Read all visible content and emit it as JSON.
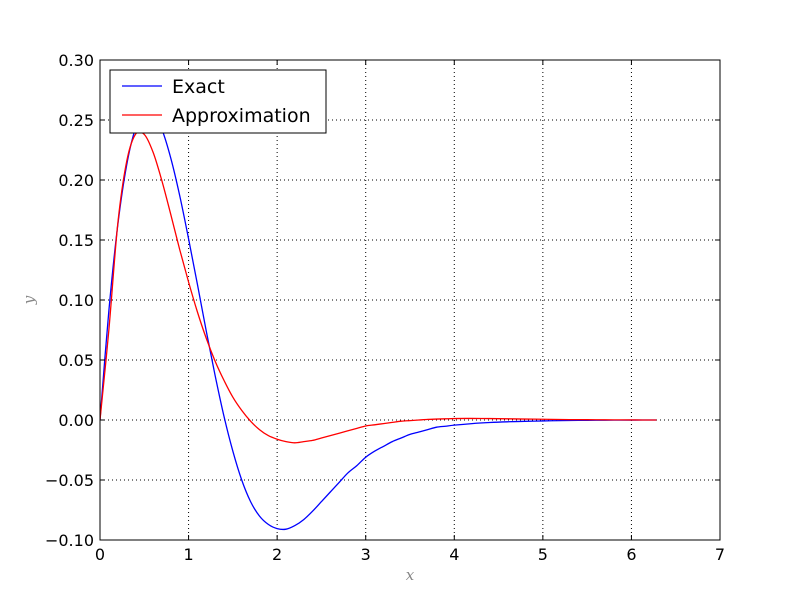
{
  "chart_data": {
    "type": "line",
    "xlabel": "x",
    "ylabel": "y",
    "xlim": [
      0,
      7
    ],
    "ylim": [
      -0.1,
      0.3
    ],
    "xticks": [
      0,
      1,
      2,
      3,
      4,
      5,
      6,
      7
    ],
    "yticks": [
      -0.1,
      -0.05,
      0.0,
      0.05,
      0.1,
      0.15,
      0.2,
      0.25,
      0.3
    ],
    "xtick_labels": [
      "0",
      "1",
      "2",
      "3",
      "4",
      "5",
      "6",
      "7"
    ],
    "ytick_labels": [
      "−0.10",
      "−0.05",
      "0.00",
      "0.05",
      "0.10",
      "0.15",
      "0.20",
      "0.25",
      "0.30"
    ],
    "grid": true,
    "legend_position": "top-left",
    "series": [
      {
        "name": "Exact",
        "color": "#0000ff",
        "x": [
          0,
          0.1,
          0.2,
          0.3,
          0.4,
          0.5,
          0.6,
          0.7,
          0.8,
          0.9,
          1.0,
          1.1,
          1.2,
          1.3,
          1.4,
          1.5,
          1.6,
          1.7,
          1.8,
          1.9,
          2.0,
          2.1,
          2.2,
          2.3,
          2.4,
          2.5,
          2.6,
          2.7,
          2.8,
          2.9,
          3.0,
          3.1,
          3.2,
          3.3,
          3.4,
          3.5,
          3.6,
          3.7,
          3.8,
          3.9,
          4.0,
          4.2,
          4.4,
          4.6,
          4.8,
          5.0,
          5.2,
          5.4,
          5.6,
          5.8,
          6.0,
          6.2832
        ],
        "y": [
          0,
          0.091,
          0.162,
          0.212,
          0.243,
          0.257,
          0.256,
          0.242,
          0.218,
          0.187,
          0.151,
          0.113,
          0.074,
          0.037,
          0.003,
          -0.026,
          -0.05,
          -0.068,
          -0.08,
          -0.087,
          -0.0905,
          -0.091,
          -0.088,
          -0.083,
          -0.076,
          -0.068,
          -0.06,
          -0.052,
          -0.044,
          -0.038,
          -0.031,
          -0.026,
          -0.022,
          -0.018,
          -0.015,
          -0.012,
          -0.01,
          -0.008,
          -0.006,
          -0.0052,
          -0.0043,
          -0.003,
          -0.0021,
          -0.0015,
          -0.0011,
          -0.0008,
          -0.0005,
          -0.0003,
          -0.0002,
          -0.0001,
          -5e-05,
          0
        ],
        "note_scale": "raw"
      },
      {
        "name": "Approximation",
        "color": "#ff0000",
        "x": [
          0,
          0.1,
          0.2,
          0.3,
          0.4,
          0.5,
          0.6,
          0.7,
          0.8,
          0.9,
          1.0,
          1.1,
          1.2,
          1.3,
          1.4,
          1.5,
          1.6,
          1.7,
          1.8,
          1.9,
          2.0,
          2.1,
          2.2,
          2.3,
          2.4,
          2.5,
          2.6,
          2.7,
          2.8,
          2.9,
          3.0,
          3.1,
          3.2,
          3.3,
          3.4,
          3.5,
          3.6,
          3.7,
          3.8,
          3.9,
          4.0,
          4.2,
          4.4,
          4.6,
          4.8,
          5.0,
          5.2,
          5.4,
          5.6,
          5.8,
          6.0,
          6.2832
        ],
        "y": [
          0,
          0.075,
          0.163,
          0.215,
          0.238,
          0.238,
          0.223,
          0.199,
          0.171,
          0.142,
          0.115,
          0.09,
          0.068,
          0.049,
          0.033,
          0.019,
          0.008,
          -0.001,
          -0.008,
          -0.013,
          -0.016,
          -0.018,
          -0.019,
          -0.018,
          -0.017,
          -0.015,
          -0.013,
          -0.011,
          -0.009,
          -0.007,
          -0.005,
          -0.004,
          -0.003,
          -0.002,
          -0.001,
          -0.0005,
          0.0,
          0.0005,
          0.0008,
          0.001,
          0.0012,
          0.0013,
          0.0012,
          0.001,
          0.0008,
          0.0006,
          0.0004,
          0.0003,
          0.0002,
          0.0001,
          5e-05,
          0
        ]
      }
    ]
  }
}
